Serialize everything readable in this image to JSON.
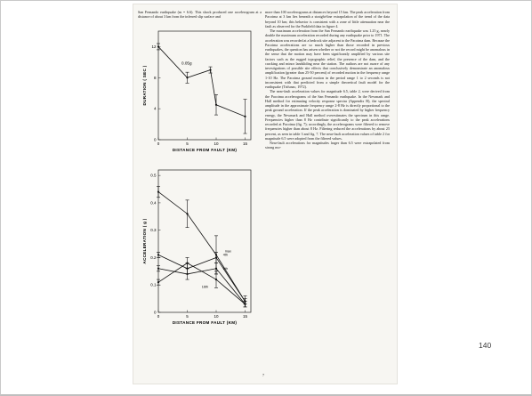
{
  "slide_number": "140",
  "page_number": "7",
  "left_text": "San Fernando earthquake (m = 6.6). This shock produced one accelerogram at a distance of about 3 km from the inferred slip surface and",
  "right_paragraphs": [
    "more than 100 accelerograms at distances beyond 15 km. The peak acceleration from Pacoima at 3 km lies beneath a straight-line extrapolation of the trend of the data beyond 10 km; this behavior is consistent with a zone of little attenuation near the fault as observed for the Parkfield data in figure 4.",
    "The maximum acceleration from the San Fernando earthquake was 1.25 g, nearly double the maximum acceleration recorded during any earthquake prior to 1971. The acceleration was recorded at a bedrock site adjacent to the Pacoima dam. Because the Pacoima accelerations are so much higher than those recorded in previous earthquakes, the question has arisen whether or not the record might be anomalous in the sense that the motion may have been significantly amplified by various site factors such as the rugged topographic relief, the presence of the dam, and the cracking and minor landsliding near the station. The authors are not aware of any investigations of possible site effects that conclusively demonstrate an anomalous amplification (greater than 25-50 percent) of recorded motion in the frequency range 1-10 Hz. The Pacoima ground motion in the period range 1 to 2 seconds is not inconsistent with that predicted from a simple theoretical fault model for the earthquake (Trifunac, 1972).",
    "The near-fault acceleration values for magnitude 6.5, table 2, were derived from the Pacoima accelerograms of the San Fernando earthquake. In the Newmark and Hall method for estimating velocity response spectra (Appendix B), the spectral amplitude in the approximate frequency range 2-8 Hz is directly proportional to the peak ground acceleration. If the peak acceleration is dominated by higher frequency energy, the Newmark and Hall method overestimates the spectrum in this range. Frequencies higher than 8 Hz contribute significantly to the peak accelerations recorded at Pacoima (fig. 7); accordingly, the accelerograms were filtered to remove frequencies higher than about 8 Hz. Filtering reduced the accelerations by about 25 percent, as seen in table 3 and fig. 7. The near-fault acceleration values of table 2 for magnitude 6.5 were adopted from the filtered values.",
    "Near-fault accelerations for magnitudes larger than 6.5 were extrapolated from strong mo-"
  ],
  "fig_top": {
    "ylabel": "DURATION ( SEC )",
    "xlabel": "DISTANCE FROM FAULT (KM)",
    "annotation": "0.05g",
    "yticks": [
      "0",
      "4",
      "8",
      "12"
    ],
    "xticks": [
      "0",
      "5",
      "10",
      "15"
    ],
    "chart_data": {
      "type": "line",
      "x": [
        0,
        5,
        9,
        10,
        15
      ],
      "y": [
        12,
        8,
        9,
        4.5,
        3
      ],
      "err": [
        0.4,
        0.7,
        0.4,
        1.3,
        2.2
      ],
      "xlim": [
        0,
        16
      ],
      "ylim": [
        0,
        14
      ]
    }
  },
  "fig_bottom": {
    "ylabel": "ACCELERATION ( g )",
    "xlabel": "DISTANCE FROM FAULT (KM)",
    "yticks": [
      "0",
      "0.1",
      "0.2",
      "0.3",
      "0.4",
      "0.5"
    ],
    "xticks": [
      "0",
      "5",
      "10",
      "15"
    ],
    "labels": [
      "max",
      "4th",
      "8th",
      "16th"
    ],
    "chart_data": {
      "type": "line",
      "series": [
        {
          "name": "max",
          "x": [
            0,
            5,
            10,
            15
          ],
          "y": [
            0.44,
            0.36,
            0.21,
            0.04
          ],
          "err": [
            0.02,
            0.05,
            0.07,
            0.02
          ]
        },
        {
          "name": "4th",
          "x": [
            0,
            5,
            10,
            15
          ],
          "y": [
            0.21,
            0.16,
            0.2,
            0.04
          ],
          "err": [
            0.01,
            0.02,
            0.02,
            0.01
          ]
        },
        {
          "name": "8th",
          "x": [
            0,
            5,
            10,
            15
          ],
          "y": [
            0.16,
            0.14,
            0.16,
            0.03
          ],
          "err": [
            0.01,
            0.02,
            0.02,
            0.01
          ]
        },
        {
          "name": "16th",
          "x": [
            0,
            5,
            10,
            15
          ],
          "y": [
            0.11,
            0.18,
            0.12,
            0.03
          ],
          "err": [
            0.01,
            0.02,
            0.03,
            0.01
          ]
        }
      ],
      "xlim": [
        0,
        16
      ],
      "ylim": [
        0,
        0.52
      ]
    }
  }
}
